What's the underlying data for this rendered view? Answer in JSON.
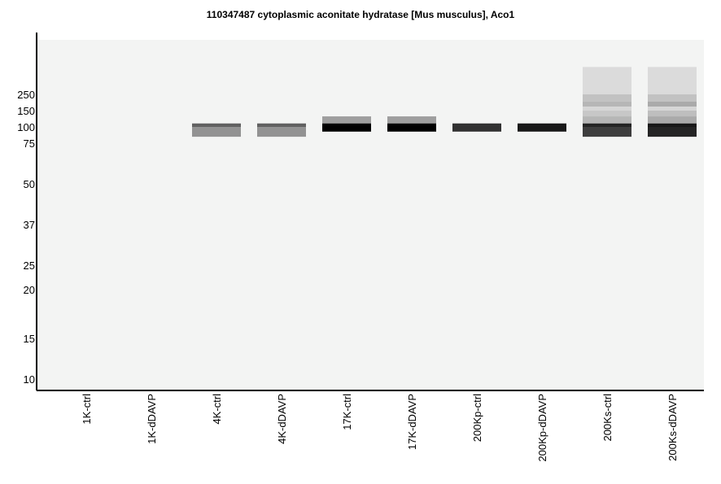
{
  "chart_data": {
    "type": "heatmap",
    "title": "110347487 cytoplasmic aconitate hydratase [Mus musculus], Aco1",
    "xlabel": "",
    "ylabel": "",
    "y_scale": "log",
    "ylim": [
      9.5,
      320
    ],
    "y_ticks": [
      250,
      150,
      100,
      75,
      50,
      37,
      25,
      20,
      15,
      10
    ],
    "lanes": [
      "1K-ctrl",
      "1K-dDAVP",
      "4K-ctrl",
      "4K-dDAVP",
      "17K-ctrl",
      "17K-dDAVP",
      "200Kp-ctrl",
      "200Kp-dDAVP",
      "200Ks-ctrl",
      "200Ks-dDAVP"
    ],
    "bands": [
      {
        "lane": "4K-ctrl",
        "mw_high": 109,
        "mw_low": 100,
        "intensity": 0.6
      },
      {
        "lane": "4K-ctrl",
        "mw_high": 100,
        "mw_low": 84,
        "intensity": 0.4
      },
      {
        "lane": "4K-dDAVP",
        "mw_high": 109,
        "mw_low": 100,
        "intensity": 0.6
      },
      {
        "lane": "4K-dDAVP",
        "mw_high": 100,
        "mw_low": 84,
        "intensity": 0.4
      },
      {
        "lane": "17K-ctrl",
        "mw_high": 130,
        "mw_low": 109,
        "intensity": 0.35
      },
      {
        "lane": "17K-ctrl",
        "mw_high": 109,
        "mw_low": 92,
        "intensity": 1.0
      },
      {
        "lane": "17K-dDAVP",
        "mw_high": 130,
        "mw_low": 109,
        "intensity": 0.35
      },
      {
        "lane": "17K-dDAVP",
        "mw_high": 109,
        "mw_low": 92,
        "intensity": 1.0
      },
      {
        "lane": "200Kp-ctrl",
        "mw_high": 109,
        "mw_low": 92,
        "intensity": 0.8
      },
      {
        "lane": "200Kp-dDAVP",
        "mw_high": 109,
        "mw_low": 92,
        "intensity": 0.9
      },
      {
        "lane": "200Ks-ctrl",
        "mw_high": 290,
        "mw_low": 250,
        "intensity": 0.1
      },
      {
        "lane": "200Ks-ctrl",
        "mw_high": 250,
        "mw_low": 200,
        "intensity": 0.2
      },
      {
        "lane": "200Ks-ctrl",
        "mw_high": 200,
        "mw_low": 170,
        "intensity": 0.25
      },
      {
        "lane": "200Ks-ctrl",
        "mw_high": 170,
        "mw_low": 150,
        "intensity": 0.12
      },
      {
        "lane": "200Ks-ctrl",
        "mw_high": 150,
        "mw_low": 130,
        "intensity": 0.18
      },
      {
        "lane": "200Ks-ctrl",
        "mw_high": 130,
        "mw_low": 109,
        "intensity": 0.25
      },
      {
        "lane": "200Ks-ctrl",
        "mw_high": 109,
        "mw_low": 100,
        "intensity": 0.85
      },
      {
        "lane": "200Ks-ctrl",
        "mw_high": 100,
        "mw_low": 84,
        "intensity": 0.75
      },
      {
        "lane": "200Ks-dDAVP",
        "mw_high": 290,
        "mw_low": 250,
        "intensity": 0.1
      },
      {
        "lane": "200Ks-dDAVP",
        "mw_high": 250,
        "mw_low": 200,
        "intensity": 0.2
      },
      {
        "lane": "200Ks-dDAVP",
        "mw_high": 200,
        "mw_low": 170,
        "intensity": 0.3
      },
      {
        "lane": "200Ks-dDAVP",
        "mw_high": 170,
        "mw_low": 150,
        "intensity": 0.12
      },
      {
        "lane": "200Ks-dDAVP",
        "mw_high": 150,
        "mw_low": 130,
        "intensity": 0.22
      },
      {
        "lane": "200Ks-dDAVP",
        "mw_high": 130,
        "mw_low": 109,
        "intensity": 0.3
      },
      {
        "lane": "200Ks-dDAVP",
        "mw_high": 109,
        "mw_low": 100,
        "intensity": 0.9
      },
      {
        "lane": "200Ks-dDAVP",
        "mw_high": 100,
        "mw_low": 84,
        "intensity": 0.85
      }
    ]
  }
}
